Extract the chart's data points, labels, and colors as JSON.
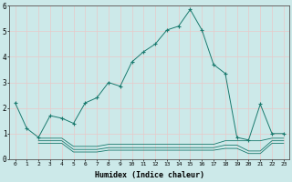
{
  "xlabel": "Humidex (Indice chaleur)",
  "bg_color": "#cce9e9",
  "line_color": "#1a7a6e",
  "grid_color": "#e8c8c8",
  "main_line": {
    "x": [
      0,
      1,
      2,
      3,
      4,
      5,
      6,
      7,
      8,
      9,
      10,
      11,
      12,
      13,
      14,
      15,
      16,
      17,
      18,
      19,
      20,
      21,
      22,
      23
    ],
    "y": [
      2.2,
      1.2,
      0.85,
      1.7,
      1.6,
      1.4,
      2.2,
      2.4,
      3.0,
      2.85,
      3.8,
      4.2,
      4.5,
      5.05,
      5.2,
      5.85,
      5.05,
      3.7,
      3.35,
      0.85,
      0.75,
      2.15,
      1.0,
      1.0
    ]
  },
  "flat_lines": [
    {
      "x": [
        2,
        3,
        4,
        5,
        6,
        7,
        8,
        9,
        10,
        11,
        12,
        13,
        14,
        15,
        16,
        17,
        18,
        19,
        20,
        21,
        22,
        23
      ],
      "y": [
        0.82,
        0.82,
        0.82,
        0.5,
        0.5,
        0.5,
        0.58,
        0.58,
        0.58,
        0.58,
        0.58,
        0.58,
        0.58,
        0.58,
        0.58,
        0.58,
        0.72,
        0.72,
        0.72,
        0.72,
        0.82,
        0.82
      ]
    },
    {
      "x": [
        2,
        3,
        4,
        5,
        6,
        7,
        8,
        9,
        10,
        11,
        12,
        13,
        14,
        15,
        16,
        17,
        18,
        19,
        20,
        21,
        22,
        23
      ],
      "y": [
        0.72,
        0.72,
        0.72,
        0.38,
        0.38,
        0.38,
        0.45,
        0.45,
        0.45,
        0.45,
        0.45,
        0.45,
        0.45,
        0.45,
        0.45,
        0.45,
        0.55,
        0.55,
        0.32,
        0.32,
        0.72,
        0.72
      ]
    },
    {
      "x": [
        2,
        3,
        4,
        5,
        6,
        7,
        8,
        9,
        10,
        11,
        12,
        13,
        14,
        15,
        16,
        17,
        18,
        19,
        20,
        21,
        22,
        23
      ],
      "y": [
        0.62,
        0.62,
        0.62,
        0.28,
        0.28,
        0.28,
        0.35,
        0.35,
        0.35,
        0.35,
        0.35,
        0.35,
        0.35,
        0.35,
        0.35,
        0.35,
        0.42,
        0.42,
        0.22,
        0.22,
        0.62,
        0.62
      ]
    }
  ],
  "ylim": [
    0,
    6
  ],
  "xlim": [
    -0.5,
    23.5
  ],
  "yticks": [
    0,
    1,
    2,
    3,
    4,
    5,
    6
  ],
  "xtick_labels": [
    "0",
    "1",
    "2",
    "3",
    "4",
    "5",
    "6",
    "7",
    "8",
    "9",
    "10",
    "11",
    "12",
    "13",
    "14",
    "15",
    "16",
    "17",
    "18",
    "19",
    "20",
    "21",
    "22",
    "23"
  ],
  "marker": "+"
}
